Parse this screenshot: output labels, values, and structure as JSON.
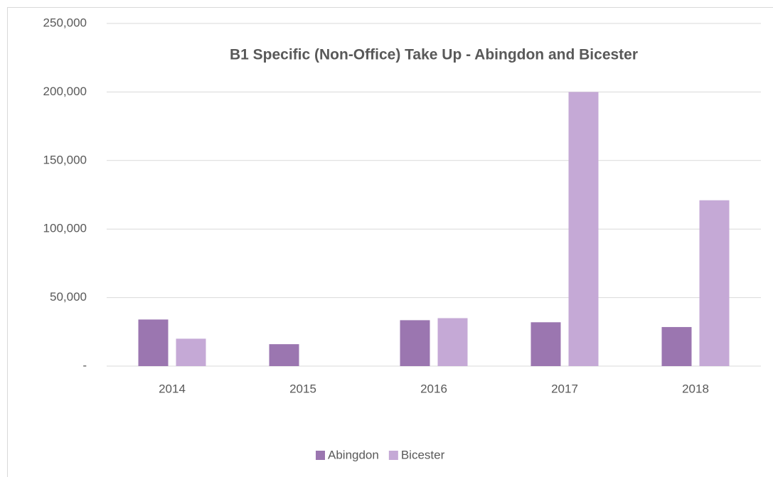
{
  "chart_data": {
    "type": "bar",
    "title": "B1 Specific (Non-Office) Take Up - Abingdon and Bicester",
    "categories": [
      "2014",
      "2015",
      "2016",
      "2017",
      "2018"
    ],
    "series": [
      {
        "name": "Abingdon",
        "color": "#9b76b0",
        "values": [
          34000,
          16000,
          33500,
          32000,
          28500
        ]
      },
      {
        "name": "Bicester",
        "color": "#c5a9d6",
        "values": [
          20000,
          0,
          35000,
          200000,
          121000
        ]
      }
    ],
    "ylim": [
      0,
      250000
    ],
    "yticks": [
      {
        "value": 0,
        "label": "-"
      },
      {
        "value": 50000,
        "label": "50,000"
      },
      {
        "value": 100000,
        "label": "100,000"
      },
      {
        "value": 150000,
        "label": "150,000"
      },
      {
        "value": 200000,
        "label": "200,000"
      },
      {
        "value": 250000,
        "label": "250,000"
      }
    ],
    "grid": true,
    "legend": "bottom"
  }
}
